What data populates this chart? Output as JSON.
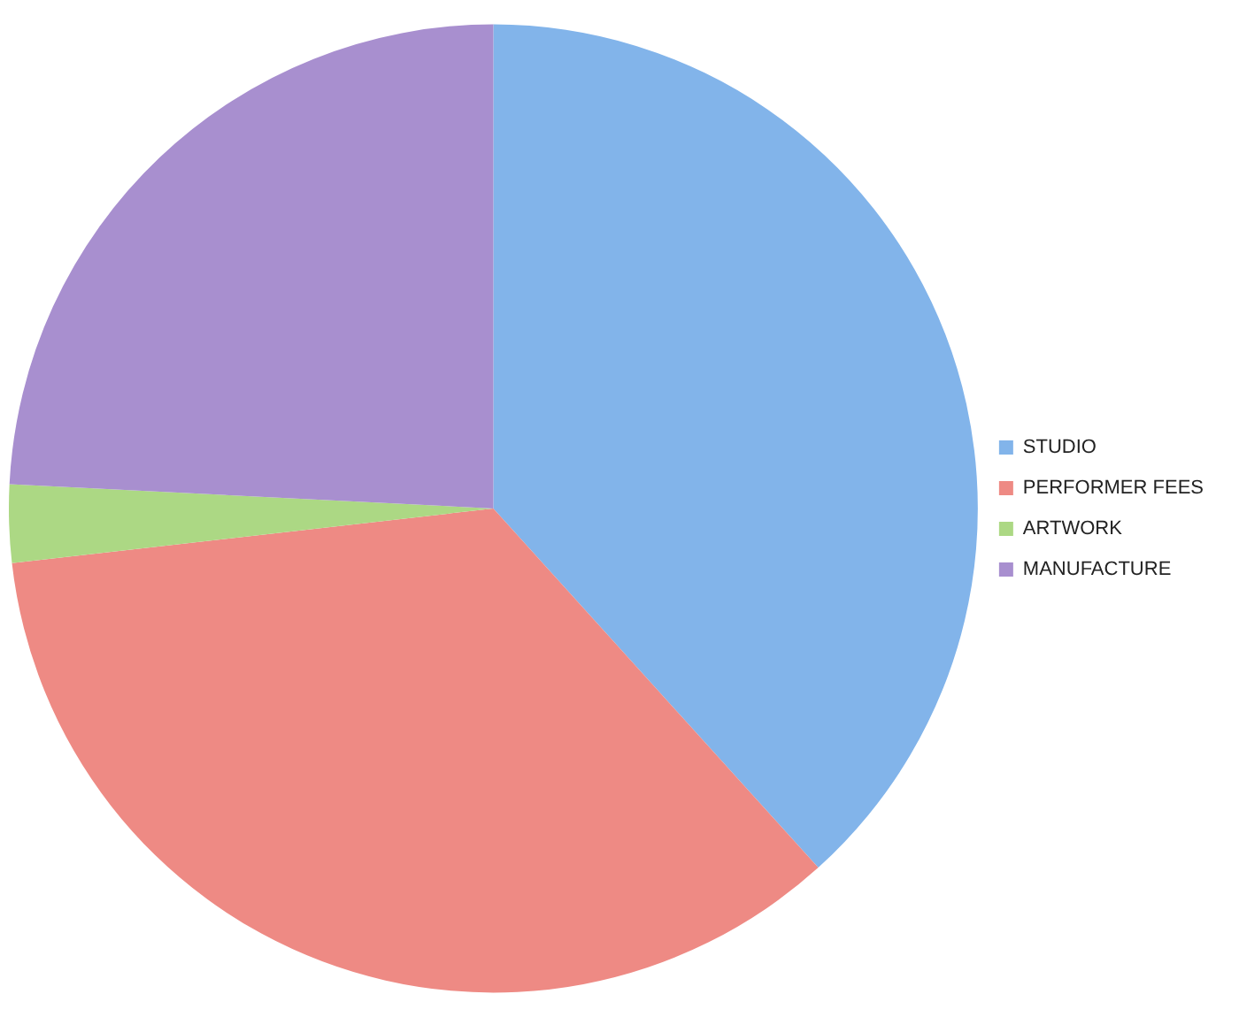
{
  "chart_data": {
    "type": "pie",
    "categories": [
      "STUDIO",
      "PERFORMER FEES",
      "ARTWORK",
      "MANUFACTURE"
    ],
    "values": [
      38.3,
      34.9,
      2.6,
      24.2
    ],
    "colors": [
      "#82b4ea",
      "#ee8a84",
      "#acd884",
      "#a88fcf"
    ],
    "legend": "right"
  }
}
